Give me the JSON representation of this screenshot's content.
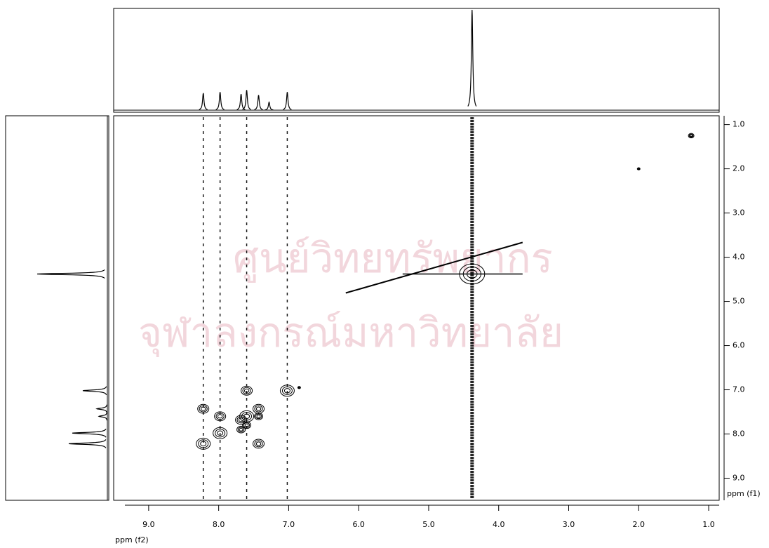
{
  "chart_data": {
    "type": "contour",
    "watermark": [
      "ศูนย์วิทยทรัพยากร",
      "จุฬาลงกรณ์มหาวิทยาลัย"
    ],
    "xlabel": "ppm (f2)",
    "ylabel": "ppm (f1)",
    "xlim": [
      9.5,
      0.85
    ],
    "ylim": [
      0.8,
      9.5
    ],
    "xticks": [
      {
        "value": 9,
        "label": "9.0"
      },
      {
        "value": 8,
        "label": "8.0"
      },
      {
        "value": 7,
        "label": "7.0"
      },
      {
        "value": 6,
        "label": "6.0"
      },
      {
        "value": 5,
        "label": "5.0"
      },
      {
        "value": 4,
        "label": "4.0"
      },
      {
        "value": 3,
        "label": "3.0"
      },
      {
        "value": 2,
        "label": "2.0"
      },
      {
        "value": 1,
        "label": "1.0"
      }
    ],
    "yticks": [
      {
        "value": 1,
        "label": "1.0"
      },
      {
        "value": 2,
        "label": "2.0"
      },
      {
        "value": 3,
        "label": "3.0"
      },
      {
        "value": 4,
        "label": "4.0"
      },
      {
        "value": 5,
        "label": "5.0"
      },
      {
        "value": 6,
        "label": "6.0"
      },
      {
        "value": 7,
        "label": "7.0"
      },
      {
        "value": 8,
        "label": "8.0"
      },
      {
        "value": 9,
        "label": "9.0"
      }
    ],
    "color": "#000000",
    "f2_projection": {
      "x": [
        8.22,
        7.98,
        7.68,
        7.6,
        7.43,
        7.28,
        7.02,
        4.38
      ],
      "values": [
        17,
        18,
        16,
        20,
        15,
        8,
        18,
        100
      ]
    },
    "f1_projection": {
      "y": [
        8.22,
        7.98,
        7.6,
        7.43,
        7.02,
        4.38
      ],
      "values": [
        55,
        50,
        12,
        15,
        35,
        100
      ]
    },
    "ridges": [
      8.22,
      7.98,
      7.6,
      7.02,
      4.38
    ],
    "peaks": {
      "x": [
        8.22,
        8.22,
        7.98,
        7.98,
        7.68,
        7.68,
        7.6,
        7.6,
        7.6,
        7.43,
        7.43,
        7.43,
        7.02,
        4.38,
        2.0,
        1.25,
        6.85
      ],
      "y": [
        8.22,
        7.43,
        7.98,
        7.6,
        7.68,
        7.9,
        7.6,
        7.02,
        7.8,
        7.43,
        7.6,
        8.22,
        7.02,
        4.38,
        2.0,
        1.25,
        6.95
      ],
      "intensity": [
        5,
        4,
        5,
        4,
        4,
        3,
        5,
        4,
        3,
        4,
        3,
        4,
        5,
        9,
        1,
        2,
        1
      ]
    }
  }
}
